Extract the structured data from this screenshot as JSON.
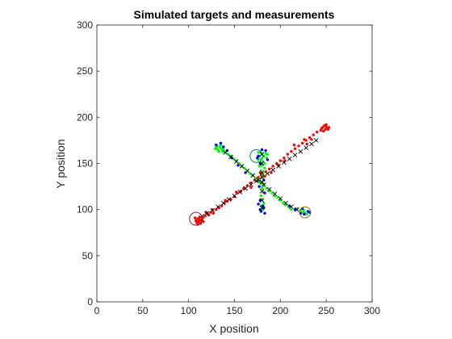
{
  "chart_data": {
    "type": "scatter",
    "title": "Simulated targets and measurements",
    "xlabel": "X position",
    "ylabel": "Y position",
    "xlim": [
      0,
      300
    ],
    "ylim": [
      0,
      300
    ],
    "xticks": [
      0,
      50,
      100,
      150,
      200,
      250,
      300
    ],
    "yticks": [
      0,
      50,
      100,
      150,
      200,
      250,
      300
    ],
    "grid": false,
    "colors": {
      "red": "#ff0000",
      "green": "#00ff00",
      "blue": "#0000ff",
      "truth": "#000000",
      "circle_red": "#a2142f",
      "circle_teal": "#00897b",
      "circle_olive": "#7a7a00"
    },
    "series": [
      {
        "color": "red",
        "marker": "dot",
        "points": [
          [
            108,
            88
          ],
          [
            109,
            86
          ],
          [
            110,
            90
          ],
          [
            111,
            87
          ],
          [
            112,
            89
          ],
          [
            113,
            85
          ],
          [
            114,
            88
          ],
          [
            110,
            84
          ],
          [
            107,
            91
          ],
          [
            112,
            92
          ],
          [
            115,
            90
          ],
          [
            116,
            87
          ],
          [
            118,
            93
          ],
          [
            121,
            95
          ],
          [
            124,
            97
          ],
          [
            127,
            96
          ],
          [
            130,
            100
          ],
          [
            133,
            102
          ],
          [
            136,
            104
          ],
          [
            139,
            107
          ],
          [
            142,
            109
          ],
          [
            146,
            111
          ],
          [
            150,
            114
          ],
          [
            153,
            118
          ],
          [
            157,
            120
          ],
          [
            160,
            123
          ],
          [
            164,
            126
          ],
          [
            168,
            129
          ],
          [
            172,
            132
          ],
          [
            176,
            135
          ],
          [
            180,
            138
          ],
          [
            184,
            141
          ],
          [
            188,
            144
          ],
          [
            192,
            147
          ],
          [
            196,
            150
          ],
          [
            200,
            153
          ],
          [
            204,
            156
          ],
          [
            208,
            160
          ],
          [
            212,
            163
          ],
          [
            216,
            166
          ],
          [
            220,
            169
          ],
          [
            224,
            172
          ],
          [
            228,
            175
          ],
          [
            232,
            178
          ],
          [
            236,
            181
          ],
          [
            240,
            184
          ],
          [
            244,
            186
          ],
          [
            246,
            189
          ],
          [
            248,
            191
          ],
          [
            250,
            190
          ],
          [
            251,
            188
          ],
          [
            249,
            187
          ],
          [
            247,
            185
          ],
          [
            252,
            187
          ],
          [
            245,
            188
          ],
          [
            250,
            192
          ],
          [
            253,
            189
          ],
          [
            183,
            136
          ],
          [
            178,
            140
          ],
          [
            168,
            124
          ],
          [
            152,
            119
          ],
          [
            140,
            110
          ],
          [
            126,
            100
          ],
          [
            234,
            176
          ],
          [
            205,
            153
          ],
          [
            215,
            170
          ],
          [
            226,
            176
          ],
          [
            198,
            148
          ],
          [
            190,
            140
          ],
          [
            122,
            94
          ],
          [
            119,
            97
          ],
          [
            229,
            171
          ]
        ]
      },
      {
        "color": "green",
        "marker": "dot",
        "points": [
          [
            130,
            167
          ],
          [
            132,
            165
          ],
          [
            134,
            168
          ],
          [
            136,
            166
          ],
          [
            135,
            170
          ],
          [
            133,
            163
          ],
          [
            138,
            165
          ],
          [
            131,
            169
          ],
          [
            140,
            162
          ],
          [
            143,
            160
          ],
          [
            146,
            158
          ],
          [
            149,
            155
          ],
          [
            152,
            153
          ],
          [
            155,
            150
          ],
          [
            158,
            147
          ],
          [
            161,
            145
          ],
          [
            164,
            142
          ],
          [
            167,
            139
          ],
          [
            170,
            137
          ],
          [
            173,
            134
          ],
          [
            176,
            131
          ],
          [
            179,
            128
          ],
          [
            182,
            126
          ],
          [
            185,
            123
          ],
          [
            188,
            120
          ],
          [
            191,
            118
          ],
          [
            194,
            115
          ],
          [
            197,
            113
          ],
          [
            200,
            110
          ],
          [
            203,
            107
          ],
          [
            206,
            105
          ],
          [
            209,
            103
          ],
          [
            212,
            100
          ],
          [
            218,
            101
          ],
          [
            222,
            99
          ],
          [
            225,
            97
          ],
          [
            227,
            96
          ],
          [
            226,
            99
          ],
          [
            229,
            95
          ],
          [
            178,
            162
          ],
          [
            180,
            160
          ],
          [
            182,
            158
          ],
          [
            179,
            155
          ],
          [
            181,
            152
          ],
          [
            180,
            148
          ],
          [
            183,
            145
          ],
          [
            179,
            142
          ],
          [
            181,
            139
          ],
          [
            180,
            135
          ],
          [
            178,
            130
          ],
          [
            182,
            127
          ],
          [
            180,
            123
          ],
          [
            181,
            119
          ],
          [
            179,
            115
          ],
          [
            180,
            111
          ],
          [
            182,
            107
          ],
          [
            179,
            104
          ],
          [
            181,
            100
          ],
          [
            177,
            158
          ],
          [
            184,
            161
          ],
          [
            176,
            154
          ],
          [
            185,
            156
          ],
          [
            183,
            150
          ],
          [
            177,
            147
          ],
          [
            137,
            163
          ],
          [
            129,
            166
          ],
          [
            186,
            160
          ],
          [
            176,
            162
          ]
        ]
      },
      {
        "color": "blue",
        "marker": "dot",
        "points": [
          [
            130,
            170
          ],
          [
            135,
            172
          ],
          [
            138,
            168
          ],
          [
            142,
            164
          ],
          [
            147,
            156
          ],
          [
            154,
            148
          ],
          [
            162,
            140
          ],
          [
            176,
            158
          ],
          [
            184,
            164
          ],
          [
            186,
            154
          ],
          [
            178,
            150
          ],
          [
            182,
            132
          ],
          [
            177,
            125
          ],
          [
            183,
            118
          ],
          [
            178,
            110
          ],
          [
            181,
            104
          ],
          [
            179,
            98
          ],
          [
            183,
            96
          ],
          [
            178,
            100
          ],
          [
            182,
            102
          ],
          [
            176,
            106
          ],
          [
            210,
            104
          ],
          [
            216,
            100
          ],
          [
            222,
            96
          ],
          [
            226,
            95
          ],
          [
            230,
            98
          ],
          [
            224,
            101
          ],
          [
            232,
            97
          ],
          [
            180,
            165
          ],
          [
            175,
            156
          ]
        ]
      },
      {
        "color": "truth",
        "marker": "x",
        "points": [
          [
            115,
            93
          ],
          [
            120,
            96
          ],
          [
            126,
            99
          ],
          [
            132,
            103
          ],
          [
            138,
            107
          ],
          [
            144,
            111
          ],
          [
            150,
            115
          ],
          [
            156,
            119
          ],
          [
            162,
            123
          ],
          [
            168,
            127
          ],
          [
            174,
            131
          ],
          [
            180,
            135
          ],
          [
            186,
            139
          ],
          [
            192,
            143
          ],
          [
            198,
            147
          ],
          [
            204,
            151
          ],
          [
            210,
            155
          ],
          [
            216,
            159
          ],
          [
            222,
            163
          ],
          [
            228,
            167
          ],
          [
            234,
            171
          ],
          [
            239,
            175
          ],
          [
            140,
            162
          ],
          [
            146,
            157
          ],
          [
            152,
            152
          ],
          [
            158,
            147
          ],
          [
            164,
            142
          ],
          [
            170,
            137
          ],
          [
            176,
            132
          ],
          [
            182,
            127
          ],
          [
            188,
            122
          ],
          [
            194,
            117
          ],
          [
            200,
            112
          ],
          [
            206,
            107
          ],
          [
            212,
            103
          ],
          [
            218,
            100
          ],
          [
            180,
            160
          ],
          [
            180,
            150
          ],
          [
            180,
            140
          ],
          [
            180,
            130
          ],
          [
            180,
            120
          ],
          [
            180,
            110
          ],
          [
            180,
            102
          ]
        ]
      }
    ],
    "circles": [
      {
        "x": 108,
        "y": 90,
        "r": 7,
        "color": "circle_red"
      },
      {
        "x": 174,
        "y": 158,
        "r": 7,
        "color": "circle_teal"
      },
      {
        "x": 227,
        "y": 97,
        "r": 6,
        "color": "circle_olive"
      }
    ]
  }
}
